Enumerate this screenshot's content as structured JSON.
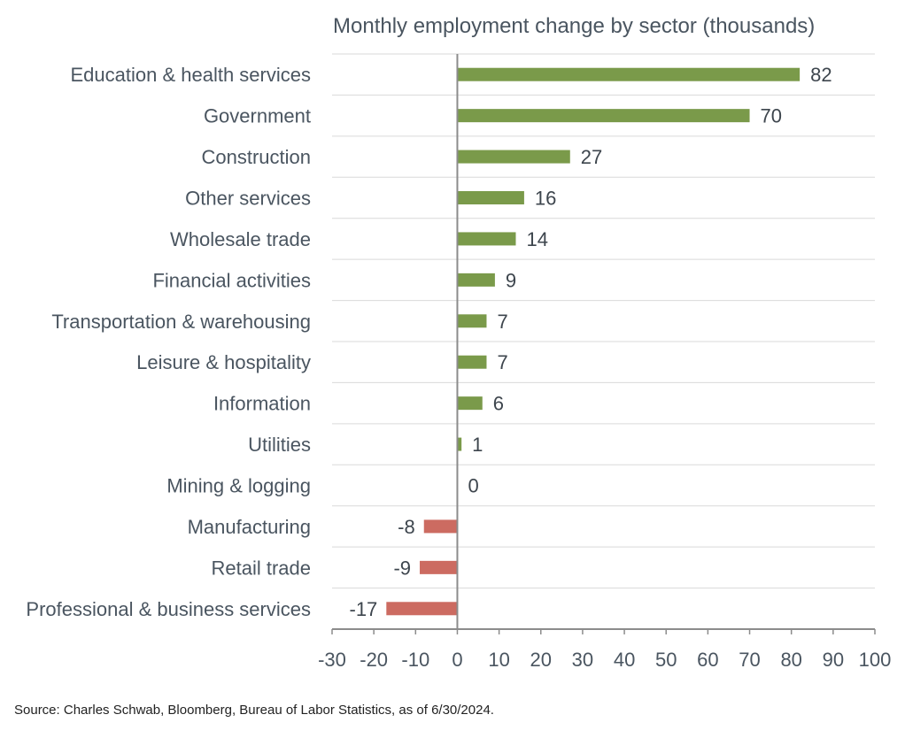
{
  "chart_data": {
    "type": "bar",
    "orientation": "horizontal",
    "title": "Monthly employment change by sector (thousands)",
    "categories": [
      "Education & health services",
      "Government",
      "Construction",
      "Other services",
      "Wholesale trade",
      "Financial activities",
      "Transportation & warehousing",
      "Leisure & hospitality",
      "Information",
      "Utilities",
      "Mining & logging",
      "Manufacturing",
      "Retail trade",
      "Professional & business services"
    ],
    "values": [
      82,
      70,
      27,
      16,
      14,
      9,
      7,
      7,
      6,
      1,
      0,
      -8,
      -9,
      -17
    ],
    "data_labels": [
      "82",
      "70",
      "27",
      "16",
      "14",
      "9",
      "7",
      "7",
      "6",
      "1",
      "0",
      "-8",
      "-9",
      "-17"
    ],
    "xlim": [
      -30,
      100
    ],
    "xticks": [
      -30,
      -20,
      -10,
      0,
      10,
      20,
      30,
      40,
      50,
      60,
      70,
      80,
      90,
      100
    ],
    "xlabel": "",
    "ylabel": "",
    "grid": true,
    "colors": {
      "positive": "#7a9a4a",
      "negative": "#cc6b61",
      "grid": "#d9d9d9",
      "axis": "#8c8c8c"
    }
  },
  "source": "Source: Charles Schwab, Bloomberg, Bureau of Labor Statistics, as of 6/30/2024."
}
